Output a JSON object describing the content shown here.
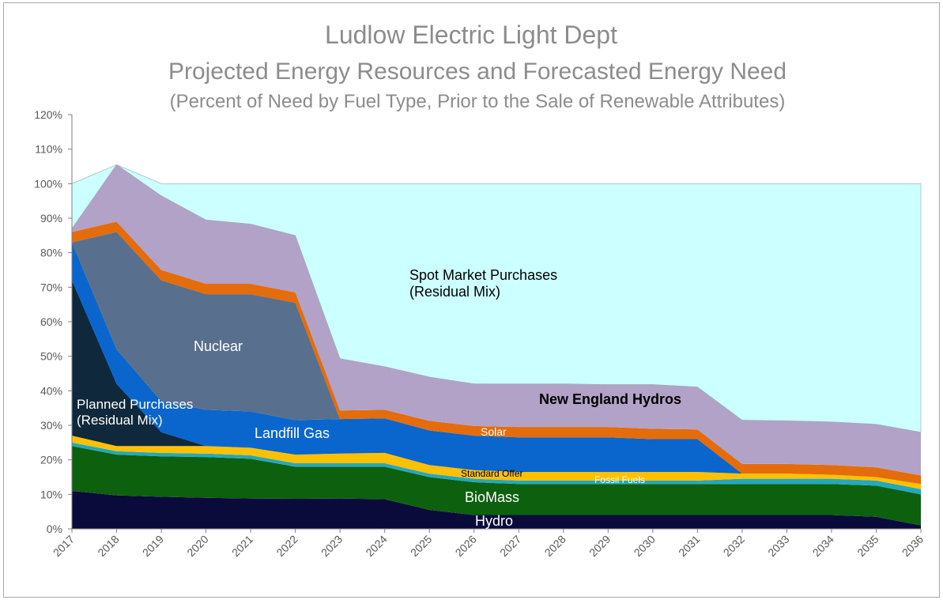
{
  "chart_data": {
    "type": "stacked-area",
    "title": "Ludlow Electric Light Dept",
    "subtitle": "Projected Energy Resources and Forecasted Energy Need",
    "note": "(Percent of Need by Fuel Type, Prior to the Sale of Renewable Attributes)",
    "categories": [
      "2017",
      "2018",
      "2019",
      "2020",
      "2021",
      "2022",
      "2023",
      "2024",
      "2025",
      "2026",
      "2027",
      "2028",
      "2029",
      "2030",
      "2031",
      "2032",
      "2033",
      "2034",
      "2035",
      "2036"
    ],
    "ylim": [
      0,
      120
    ],
    "yticks": [
      {
        "value": 0,
        "label": "0%"
      },
      {
        "value": 10,
        "label": "10%"
      },
      {
        "value": 20,
        "label": "20%"
      },
      {
        "value": 30,
        "label": "30%"
      },
      {
        "value": 40,
        "label": "40%"
      },
      {
        "value": 50,
        "label": "50%"
      },
      {
        "value": 60,
        "label": "60%"
      },
      {
        "value": 70,
        "label": "70%"
      },
      {
        "value": 80,
        "label": "80%"
      },
      {
        "value": 90,
        "label": "90%"
      },
      {
        "value": 100,
        "label": "100%"
      },
      {
        "value": 110,
        "label": "110%"
      },
      {
        "value": 120,
        "label": "120%"
      }
    ],
    "grid": false,
    "series": [
      {
        "name": "Hydro",
        "color": "#0b0b3b",
        "values": [
          11,
          9.7,
          9.3,
          9,
          8.8,
          8.7,
          8.8,
          8.6,
          5.5,
          4,
          4,
          4,
          4,
          4,
          4,
          4,
          4,
          4,
          3.5,
          1
        ]
      },
      {
        "name": "BioMass",
        "color": "#0d600d",
        "values": [
          13,
          11.8,
          11.7,
          11.8,
          11.5,
          9.3,
          9.2,
          9.4,
          9.5,
          9.5,
          9,
          9,
          9,
          9,
          9,
          9,
          9,
          9,
          9,
          9
        ]
      },
      {
        "name": "Fossil Fuels",
        "color": "#22a9bd",
        "values": [
          1,
          1,
          1,
          1,
          1,
          1,
          1,
          1,
          1,
          1,
          1,
          1,
          1,
          1,
          1,
          1.5,
          1.5,
          1.5,
          1.5,
          1.5
        ]
      },
      {
        "name": "Standard Offer",
        "color": "#ffc000",
        "values": [
          2,
          1.5,
          2,
          2.2,
          2.2,
          2.5,
          2.8,
          3,
          2.5,
          2.5,
          2.5,
          2.5,
          2.5,
          2.5,
          2.5,
          1.5,
          1.5,
          1.2,
          1,
          1.5
        ]
      },
      {
        "name": "Planned Purchases\n(Residual Mix)",
        "color": "#10283c",
        "values": [
          45,
          18,
          4,
          0,
          0,
          0,
          0,
          0,
          0,
          0,
          0,
          0,
          0,
          0,
          0,
          0,
          0,
          0,
          0,
          0
        ]
      },
      {
        "name": "Landfill Gas",
        "color": "#0a66cc",
        "values": [
          11,
          10,
          9,
          10.5,
          10.5,
          10,
          10,
          10,
          10,
          10,
          10,
          10,
          10,
          9.5,
          9.5,
          0,
          0,
          0,
          0,
          0
        ]
      },
      {
        "name": "Nuclear",
        "color": "#586f8e",
        "values": [
          0,
          34,
          35,
          33.5,
          34,
          34,
          0,
          0,
          0,
          0,
          0,
          0,
          0,
          0,
          0,
          0,
          0,
          0,
          0,
          0
        ]
      },
      {
        "name": "Solar",
        "color": "#e46c0a",
        "values": [
          3,
          3,
          3,
          3,
          3,
          3,
          2.5,
          2.5,
          2.8,
          2.8,
          3,
          3,
          3,
          3,
          2.8,
          2.8,
          2.8,
          2.8,
          2.8,
          2.5
        ]
      },
      {
        "name": "New England Hydros",
        "color": "#b3a2c7",
        "values": [
          1,
          16.5,
          21.5,
          18.5,
          17.3,
          16.5,
          15,
          12.5,
          12.7,
          12.2,
          12.5,
          12.5,
          12.3,
          12.8,
          12.3,
          12.7,
          12.5,
          12.5,
          12.5,
          12.5
        ]
      },
      {
        "name": "Spot Market Purchases\n(Residual Mix)",
        "color": "#ccffff",
        "values": [
          13,
          0,
          3.5,
          10.5,
          11.7,
          15,
          50.7,
          53,
          56,
          58,
          58,
          58,
          58.2,
          58.2,
          58.9,
          68.5,
          68.7,
          69,
          69.7,
          72
        ]
      }
    ]
  }
}
